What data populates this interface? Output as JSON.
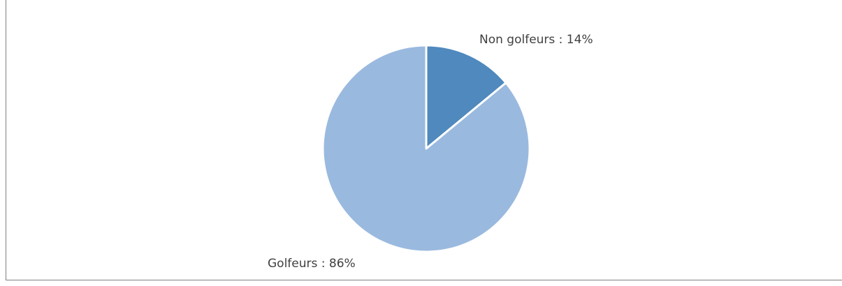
{
  "chart_data": {
    "type": "pie",
    "slices": [
      {
        "label": "Non golfeurs : 14%",
        "value": 14,
        "color": "#4f89bd"
      },
      {
        "label": "Golfeurs : 86%",
        "value": 86,
        "color": "#9ab9df"
      }
    ],
    "start_angle_deg": 0,
    "direction": "clockwise",
    "legend": "none",
    "grid": false
  },
  "colors": {
    "border": "#7f7f7f",
    "slice_stroke": "#ffffff",
    "label_text": "#404040"
  }
}
